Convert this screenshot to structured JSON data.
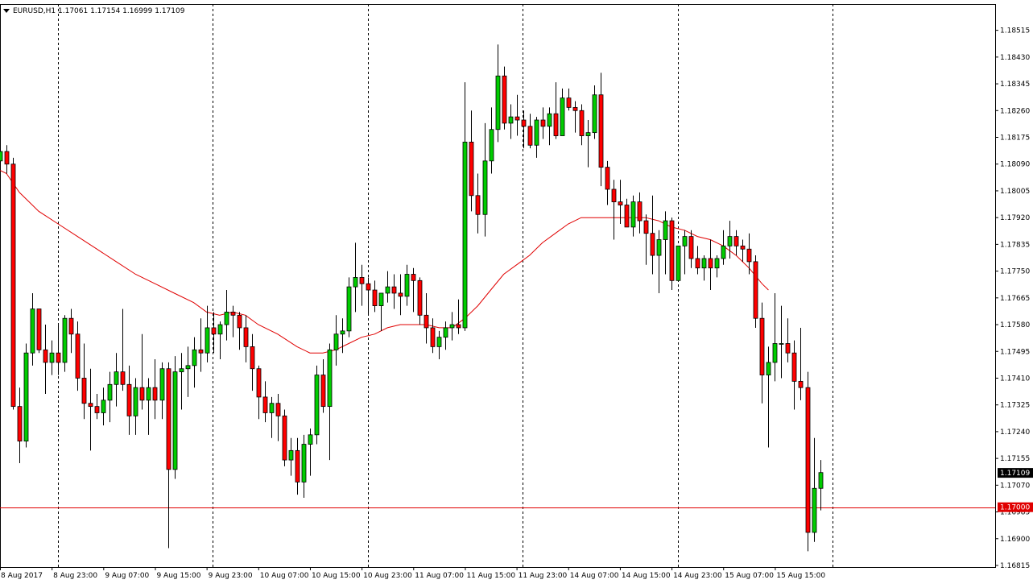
{
  "header": {
    "symbol": "EURUSD,H1",
    "ohlc": "1.17061 1.17154 1.16999 1.17109"
  },
  "colors": {
    "background": "#ffffff",
    "frame": "#000000",
    "bull": "#00cc00",
    "bear": "#ff0000",
    "ma": "#e00000",
    "hline": "#e00000",
    "separator": "#000000"
  },
  "chart_data": {
    "type": "candlestick",
    "symbol": "EURUSD",
    "timeframe": "H1",
    "y_axis": {
      "ylim": [
        1.16815,
        1.18555
      ],
      "ticks": [
        "1.18515",
        "1.18430",
        "1.18345",
        "1.18260",
        "1.18175",
        "1.18090",
        "1.18005",
        "1.17920",
        "1.17835",
        "1.17750",
        "1.17665",
        "1.17580",
        "1.17495",
        "1.17410",
        "1.17325",
        "1.17240",
        "1.17155",
        "1.17070",
        "1.16985",
        "1.16900",
        "1.16815"
      ]
    },
    "x_axis": {
      "labels": [
        {
          "index": 0,
          "text": "8 Aug 2017"
        },
        {
          "index": 8,
          "text": "8 Aug 23:00"
        },
        {
          "index": 16,
          "text": "9 Aug 07:00"
        },
        {
          "index": 24,
          "text": "9 Aug 15:00"
        },
        {
          "index": 32,
          "text": "9 Aug 23:00"
        },
        {
          "index": 40,
          "text": "10 Aug 07:00"
        },
        {
          "index": 48,
          "text": "10 Aug 15:00"
        },
        {
          "index": 56,
          "text": "10 Aug 23:00"
        },
        {
          "index": 64,
          "text": "11 Aug 07:00"
        },
        {
          "index": 72,
          "text": "11 Aug 15:00"
        },
        {
          "index": 80,
          "text": "11 Aug 23:00"
        },
        {
          "index": 88,
          "text": "14 Aug 07:00"
        },
        {
          "index": 96,
          "text": "14 Aug 15:00"
        },
        {
          "index": 104,
          "text": "14 Aug 23:00"
        },
        {
          "index": 112,
          "text": "15 Aug 07:00"
        },
        {
          "index": 120,
          "text": "15 Aug 15:00"
        }
      ]
    },
    "separators": [
      9,
      33,
      57,
      81,
      105,
      129
    ],
    "current_price": {
      "value": 1.17109,
      "label": "1.17109"
    },
    "horizontal_line": {
      "value": 1.17,
      "label": "1.17000"
    },
    "candles": [
      [
        1.181,
        1.1816,
        1.1807,
        1.1813
      ],
      [
        1.1813,
        1.1815,
        1.1806,
        1.1809
      ],
      [
        1.1809,
        1.1811,
        1.1731,
        1.1732
      ],
      [
        1.1732,
        1.1738,
        1.1714,
        1.1721
      ],
      [
        1.1721,
        1.1752,
        1.1719,
        1.1749
      ],
      [
        1.1749,
        1.1768,
        1.1745,
        1.1763
      ],
      [
        1.1763,
        1.1763,
        1.1749,
        1.175
      ],
      [
        1.175,
        1.1758,
        1.1736,
        1.1746
      ],
      [
        1.1746,
        1.1753,
        1.1742,
        1.1749
      ],
      [
        1.1749,
        1.1758,
        1.1742,
        1.1746
      ],
      [
        1.1746,
        1.1761,
        1.1743,
        1.176
      ],
      [
        1.176,
        1.1763,
        1.1749,
        1.1755
      ],
      [
        1.1755,
        1.1759,
        1.1737,
        1.1741
      ],
      [
        1.1741,
        1.1752,
        1.1728,
        1.1733
      ],
      [
        1.1733,
        1.1744,
        1.1718,
        1.1732
      ],
      [
        1.1732,
        1.1736,
        1.1728,
        1.173
      ],
      [
        1.173,
        1.1738,
        1.1726,
        1.1734
      ],
      [
        1.1734,
        1.1743,
        1.1727,
        1.1739
      ],
      [
        1.1739,
        1.1749,
        1.1732,
        1.1743
      ],
      [
        1.1743,
        1.1763,
        1.1737,
        1.1739
      ],
      [
        1.1739,
        1.1745,
        1.1723,
        1.1729
      ],
      [
        1.1729,
        1.1741,
        1.1723,
        1.1738
      ],
      [
        1.1738,
        1.1755,
        1.1731,
        1.1734
      ],
      [
        1.1734,
        1.1741,
        1.1723,
        1.1738
      ],
      [
        1.1738,
        1.1747,
        1.1728,
        1.1734
      ],
      [
        1.1734,
        1.1746,
        1.1728,
        1.1744
      ],
      [
        1.1744,
        1.1746,
        1.1687,
        1.1712
      ],
      [
        1.1712,
        1.1748,
        1.1709,
        1.1743
      ],
      [
        1.1743,
        1.1749,
        1.1731,
        1.1744
      ],
      [
        1.1744,
        1.1751,
        1.1735,
        1.1745
      ],
      [
        1.1745,
        1.1754,
        1.1738,
        1.175
      ],
      [
        1.175,
        1.176,
        1.1743,
        1.1749
      ],
      [
        1.1749,
        1.1764,
        1.1746,
        1.1757
      ],
      [
        1.1757,
        1.1762,
        1.1749,
        1.1755
      ],
      [
        1.1755,
        1.1759,
        1.1747,
        1.1758
      ],
      [
        1.1758,
        1.1769,
        1.1753,
        1.1762
      ],
      [
        1.1762,
        1.1764,
        1.1754,
        1.1761
      ],
      [
        1.1761,
        1.1762,
        1.175,
        1.1757
      ],
      [
        1.1757,
        1.1761,
        1.1746,
        1.1751
      ],
      [
        1.1751,
        1.1755,
        1.1737,
        1.1744
      ],
      [
        1.1744,
        1.1745,
        1.1728,
        1.1735
      ],
      [
        1.1735,
        1.174,
        1.1727,
        1.173
      ],
      [
        1.173,
        1.1735,
        1.1722,
        1.1733
      ],
      [
        1.1733,
        1.1736,
        1.1721,
        1.1729
      ],
      [
        1.1729,
        1.1731,
        1.1713,
        1.1715
      ],
      [
        1.1715,
        1.1722,
        1.171,
        1.1718
      ],
      [
        1.1718,
        1.1722,
        1.1704,
        1.1708
      ],
      [
        1.1708,
        1.1723,
        1.1703,
        1.172
      ],
      [
        1.172,
        1.1725,
        1.171,
        1.1723
      ],
      [
        1.1723,
        1.1745,
        1.172,
        1.1742
      ],
      [
        1.1742,
        1.1747,
        1.173,
        1.1732
      ],
      [
        1.1732,
        1.1752,
        1.1715,
        1.175
      ],
      [
        1.175,
        1.1761,
        1.1745,
        1.1755
      ],
      [
        1.1755,
        1.176,
        1.1749,
        1.1756
      ],
      [
        1.1756,
        1.1773,
        1.1754,
        1.177
      ],
      [
        1.177,
        1.1784,
        1.1762,
        1.1773
      ],
      [
        1.1773,
        1.1777,
        1.1764,
        1.1771
      ],
      [
        1.1771,
        1.1773,
        1.1761,
        1.1769
      ],
      [
        1.1769,
        1.1772,
        1.1762,
        1.1764
      ],
      [
        1.1764,
        1.1768,
        1.1756,
        1.1768
      ],
      [
        1.1768,
        1.1775,
        1.1765,
        1.177
      ],
      [
        1.177,
        1.1774,
        1.1763,
        1.1768
      ],
      [
        1.1768,
        1.1774,
        1.1761,
        1.1767
      ],
      [
        1.1767,
        1.1777,
        1.1764,
        1.1774
      ],
      [
        1.1774,
        1.1776,
        1.1762,
        1.1772
      ],
      [
        1.1772,
        1.1773,
        1.1758,
        1.1761
      ],
      [
        1.1761,
        1.1768,
        1.1752,
        1.1757
      ],
      [
        1.1757,
        1.176,
        1.1749,
        1.1751
      ],
      [
        1.1751,
        1.1756,
        1.1747,
        1.1754
      ],
      [
        1.1754,
        1.1759,
        1.175,
        1.1757
      ],
      [
        1.1757,
        1.1762,
        1.1753,
        1.1758
      ],
      [
        1.1758,
        1.1766,
        1.1755,
        1.1757
      ],
      [
        1.1757,
        1.1835,
        1.1756,
        1.1816
      ],
      [
        1.1816,
        1.1826,
        1.1794,
        1.1799
      ],
      [
        1.1799,
        1.1806,
        1.1787,
        1.1793
      ],
      [
        1.1793,
        1.1822,
        1.1786,
        1.181
      ],
      [
        1.181,
        1.1827,
        1.1806,
        1.182
      ],
      [
        1.182,
        1.1847,
        1.1816,
        1.1837
      ],
      [
        1.1837,
        1.184,
        1.182,
        1.1822
      ],
      [
        1.1822,
        1.1828,
        1.1817,
        1.1824
      ],
      [
        1.1824,
        1.1831,
        1.1818,
        1.1823
      ],
      [
        1.1823,
        1.1826,
        1.1814,
        1.1821
      ],
      [
        1.1821,
        1.1825,
        1.1814,
        1.1815
      ],
      [
        1.1815,
        1.1824,
        1.1811,
        1.1823
      ],
      [
        1.1823,
        1.1827,
        1.1817,
        1.1821
      ],
      [
        1.1821,
        1.1827,
        1.1815,
        1.1825
      ],
      [
        1.1825,
        1.1835,
        1.1817,
        1.1818
      ],
      [
        1.1818,
        1.1833,
        1.1818,
        1.183
      ],
      [
        1.183,
        1.1833,
        1.1826,
        1.1827
      ],
      [
        1.1827,
        1.1829,
        1.1819,
        1.1826
      ],
      [
        1.1826,
        1.1828,
        1.1815,
        1.1818
      ],
      [
        1.1818,
        1.1823,
        1.1808,
        1.1819
      ],
      [
        1.1819,
        1.1834,
        1.1817,
        1.1831
      ],
      [
        1.1831,
        1.1838,
        1.1802,
        1.1808
      ],
      [
        1.1808,
        1.181,
        1.1796,
        1.1801
      ],
      [
        1.1801,
        1.1804,
        1.1785,
        1.1797
      ],
      [
        1.1797,
        1.1804,
        1.179,
        1.1796
      ],
      [
        1.1796,
        1.1798,
        1.1789,
        1.1789
      ],
      [
        1.1789,
        1.1799,
        1.1786,
        1.1797
      ],
      [
        1.1797,
        1.18,
        1.1787,
        1.1791
      ],
      [
        1.1791,
        1.1793,
        1.1777,
        1.1787
      ],
      [
        1.1787,
        1.1799,
        1.1774,
        1.178
      ],
      [
        1.178,
        1.1788,
        1.1768,
        1.1785
      ],
      [
        1.1785,
        1.1794,
        1.1774,
        1.1791
      ],
      [
        1.1791,
        1.1792,
        1.1769,
        1.1772
      ],
      [
        1.1772,
        1.1783,
        1.1772,
        1.1783
      ],
      [
        1.1783,
        1.1788,
        1.1774,
        1.1786
      ],
      [
        1.1786,
        1.1788,
        1.1776,
        1.1779
      ],
      [
        1.1779,
        1.1783,
        1.1774,
        1.1776
      ],
      [
        1.1776,
        1.178,
        1.1772,
        1.1779
      ],
      [
        1.1779,
        1.1785,
        1.1769,
        1.1776
      ],
      [
        1.1776,
        1.178,
        1.1773,
        1.1779
      ],
      [
        1.1779,
        1.1788,
        1.1777,
        1.1783
      ],
      [
        1.1783,
        1.1791,
        1.1779,
        1.1786
      ],
      [
        1.1786,
        1.1788,
        1.178,
        1.1783
      ],
      [
        1.1783,
        1.1785,
        1.1778,
        1.1782
      ],
      [
        1.1782,
        1.1787,
        1.1774,
        1.1778
      ],
      [
        1.1778,
        1.178,
        1.1757,
        1.176
      ],
      [
        1.176,
        1.1765,
        1.1733,
        1.1742
      ],
      [
        1.1742,
        1.1751,
        1.1719,
        1.1746
      ],
      [
        1.1746,
        1.1768,
        1.174,
        1.1752
      ],
      [
        1.1752,
        1.1764,
        1.1741,
        1.1752
      ],
      [
        1.1752,
        1.176,
        1.1746,
        1.1749
      ],
      [
        1.1749,
        1.1753,
        1.1731,
        1.174
      ],
      [
        1.174,
        1.1757,
        1.1734,
        1.1738
      ],
      [
        1.1738,
        1.1743,
        1.1686,
        1.1692
      ],
      [
        1.1692,
        1.1722,
        1.1689,
        1.1706
      ],
      [
        1.1706,
        1.1715,
        1.1699,
        1.1711
      ]
    ],
    "moving_average": [
      [
        0,
        1.1807
      ],
      [
        1,
        1.1806
      ],
      [
        3,
        1.18
      ],
      [
        6,
        1.1794
      ],
      [
        9,
        1.179
      ],
      [
        12,
        1.1786
      ],
      [
        15,
        1.1782
      ],
      [
        18,
        1.1778
      ],
      [
        21,
        1.1774
      ],
      [
        24,
        1.1771
      ],
      [
        27,
        1.1768
      ],
      [
        30,
        1.1765
      ],
      [
        32,
        1.1762
      ],
      [
        34,
        1.1761
      ],
      [
        36,
        1.1762
      ],
      [
        38,
        1.1761
      ],
      [
        40,
        1.1758
      ],
      [
        43,
        1.1755
      ],
      [
        46,
        1.1751
      ],
      [
        48,
        1.1749
      ],
      [
        50,
        1.1749
      ],
      [
        52,
        1.175
      ],
      [
        54,
        1.1752
      ],
      [
        56,
        1.1754
      ],
      [
        58,
        1.1755
      ],
      [
        60,
        1.1757
      ],
      [
        62,
        1.1758
      ],
      [
        64,
        1.1758
      ],
      [
        66,
        1.1758
      ],
      [
        68,
        1.1757
      ],
      [
        70,
        1.1757
      ],
      [
        72,
        1.176
      ],
      [
        74,
        1.1764
      ],
      [
        76,
        1.1769
      ],
      [
        78,
        1.1774
      ],
      [
        80,
        1.1777
      ],
      [
        82,
        1.178
      ],
      [
        84,
        1.1784
      ],
      [
        86,
        1.1787
      ],
      [
        88,
        1.179
      ],
      [
        90,
        1.1792
      ],
      [
        92,
        1.1792
      ],
      [
        94,
        1.1792
      ],
      [
        96,
        1.1792
      ],
      [
        98,
        1.1792
      ],
      [
        100,
        1.1792
      ],
      [
        102,
        1.1791
      ],
      [
        104,
        1.1789
      ],
      [
        106,
        1.1788
      ],
      [
        108,
        1.1786
      ],
      [
        110,
        1.1785
      ],
      [
        112,
        1.1783
      ],
      [
        114,
        1.178
      ],
      [
        116,
        1.1776
      ],
      [
        118,
        1.1771
      ],
      [
        119,
        1.1769
      ]
    ]
  }
}
